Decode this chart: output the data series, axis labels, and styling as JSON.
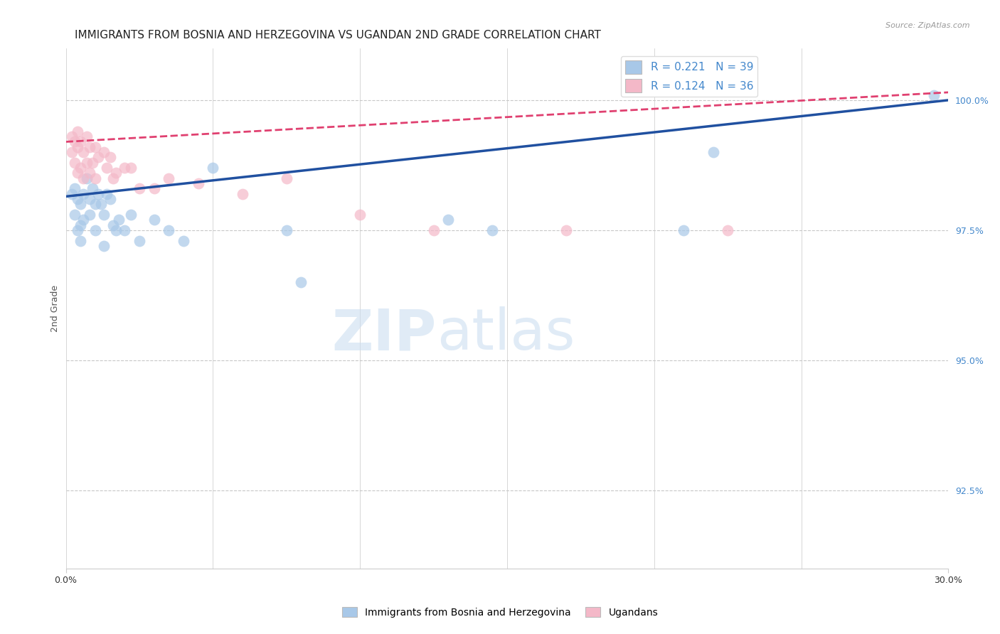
{
  "title": "IMMIGRANTS FROM BOSNIA AND HERZEGOVINA VS UGANDAN 2ND GRADE CORRELATION CHART",
  "source": "Source: ZipAtlas.com",
  "ylabel": "2nd Grade",
  "xlim": [
    0.0,
    30.0
  ],
  "ylim": [
    91.0,
    101.0
  ],
  "right_yticks": [
    100.0,
    97.5,
    95.0,
    92.5
  ],
  "legend_blue_label": "Immigrants from Bosnia and Herzegovina",
  "legend_pink_label": "Ugandans",
  "blue_color": "#A8C8E8",
  "pink_color": "#F4B8C8",
  "blue_line_color": "#2050A0",
  "pink_line_color": "#E04070",
  "grid_color": "#C8C8C8",
  "background_color": "#FFFFFF",
  "title_fontsize": 11,
  "axis_label_fontsize": 9,
  "tick_fontsize": 9,
  "right_tick_color": "#4488CC",
  "blue_trend_x0": 0.0,
  "blue_trend_y0": 98.15,
  "blue_trend_x1": 30.0,
  "blue_trend_y1": 100.0,
  "pink_trend_x0": 0.0,
  "pink_trend_y0": 99.2,
  "pink_trend_x1": 30.0,
  "pink_trend_y1": 100.15,
  "blue_scatter_x": [
    0.2,
    0.3,
    0.3,
    0.4,
    0.4,
    0.5,
    0.5,
    0.5,
    0.6,
    0.6,
    0.7,
    0.8,
    0.8,
    0.9,
    1.0,
    1.0,
    1.1,
    1.2,
    1.3,
    1.3,
    1.4,
    1.5,
    1.6,
    1.7,
    1.8,
    2.0,
    2.2,
    2.5,
    3.0,
    3.5,
    4.0,
    5.0,
    7.5,
    8.0,
    13.0,
    14.5,
    21.0,
    22.0,
    29.5
  ],
  "blue_scatter_y": [
    98.2,
    98.3,
    97.8,
    98.1,
    97.5,
    98.0,
    97.6,
    97.3,
    98.2,
    97.7,
    98.5,
    98.1,
    97.8,
    98.3,
    98.0,
    97.5,
    98.2,
    98.0,
    97.8,
    97.2,
    98.2,
    98.1,
    97.6,
    97.5,
    97.7,
    97.5,
    97.8,
    97.3,
    97.7,
    97.5,
    97.3,
    98.7,
    97.5,
    96.5,
    97.7,
    97.5,
    97.5,
    99.0,
    100.1
  ],
  "pink_scatter_x": [
    0.2,
    0.2,
    0.3,
    0.3,
    0.4,
    0.4,
    0.4,
    0.5,
    0.5,
    0.6,
    0.6,
    0.7,
    0.7,
    0.8,
    0.8,
    0.9,
    1.0,
    1.0,
    1.1,
    1.3,
    1.4,
    1.5,
    1.6,
    1.7,
    2.0,
    2.2,
    2.5,
    3.0,
    3.5,
    4.5,
    6.0,
    7.5,
    10.0,
    12.5,
    17.0,
    22.5
  ],
  "pink_scatter_y": [
    99.3,
    99.0,
    99.2,
    98.8,
    99.4,
    99.1,
    98.6,
    99.2,
    98.7,
    99.0,
    98.5,
    99.3,
    98.8,
    99.1,
    98.6,
    98.8,
    99.1,
    98.5,
    98.9,
    99.0,
    98.7,
    98.9,
    98.5,
    98.6,
    98.7,
    98.7,
    98.3,
    98.3,
    98.5,
    98.4,
    98.2,
    98.5,
    97.8,
    97.5,
    97.5,
    97.5
  ]
}
